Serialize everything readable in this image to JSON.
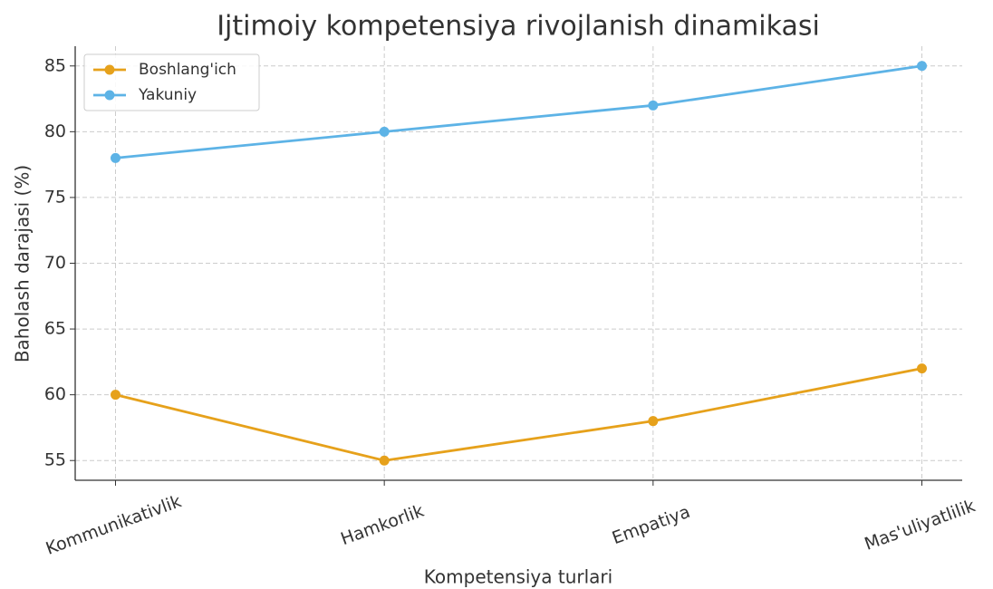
{
  "chart_data": {
    "type": "line",
    "title": "Ijtimoiy kompetensiya rivojlanish dinamikasi",
    "xlabel": "Kompetensiya turlari",
    "ylabel": "Baholash darajasi (%)",
    "categories": [
      "Kommunikativlik",
      "Hamkorlik",
      "Empatiya",
      "Mas'uliyatlilik"
    ],
    "series": [
      {
        "name": "Boshlang'ich",
        "color": "#e6a11b",
        "values": [
          60,
          55,
          58,
          62
        ]
      },
      {
        "name": "Yakuniy",
        "color": "#5db3e6",
        "values": [
          78,
          80,
          82,
          85
        ]
      }
    ],
    "ylim": [
      53.5,
      86.5
    ],
    "yticks": [
      55,
      60,
      65,
      70,
      75,
      80,
      85
    ],
    "grid": true,
    "legend": "upper left"
  }
}
